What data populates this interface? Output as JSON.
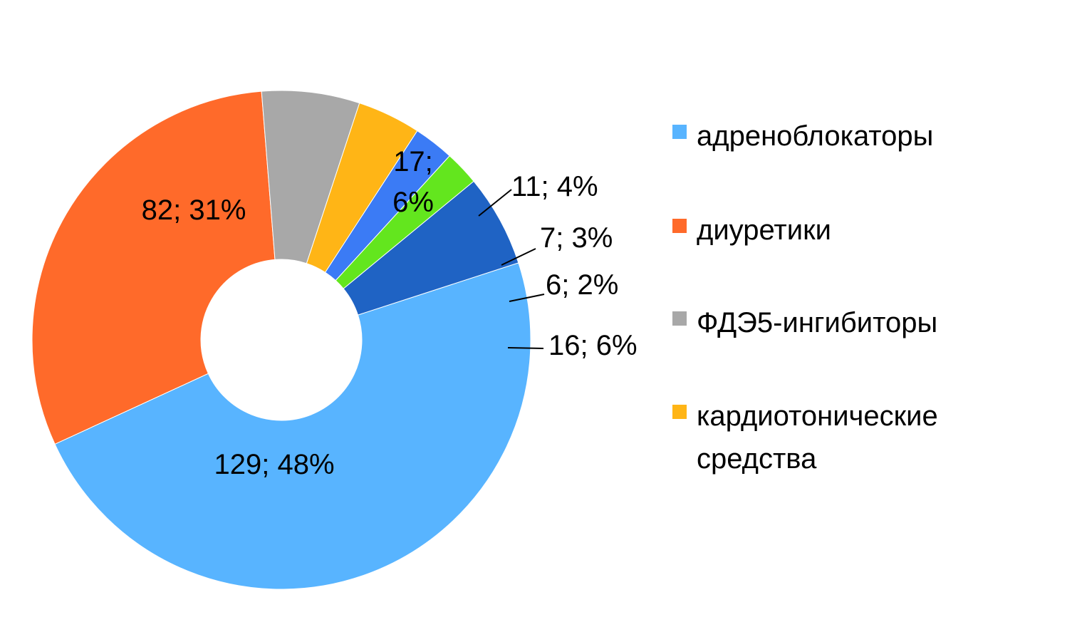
{
  "chart_data": {
    "type": "pie",
    "variant": "donut",
    "title": "",
    "legend_position": "right",
    "slices": [
      {
        "name": "адреноблокаторы",
        "value": 129,
        "percent": 48,
        "label": "129; 48%",
        "color": "#58B4FF"
      },
      {
        "name": "диуретики",
        "value": 82,
        "percent": 31,
        "label": "82; 31%",
        "color": "#FF6A2A"
      },
      {
        "name": "ФДЭ5-ингибиторы",
        "value": 17,
        "percent": 6,
        "label_lines": [
          "17;",
          "6%"
        ],
        "color": "#A8A8A8"
      },
      {
        "name": "кардиотонические средства",
        "value": 11,
        "percent": 4,
        "label": "11; 4%",
        "color": "#FFB516"
      },
      {
        "name": "",
        "value": 7,
        "percent": 3,
        "label": "7; 3%",
        "color": "#3B7BF5"
      },
      {
        "name": "",
        "value": 6,
        "percent": 2,
        "label": "6; 2%",
        "color": "#63E61E"
      },
      {
        "name": "",
        "value": 16,
        "percent": 6,
        "label": "16; 6%",
        "color": "#1F63C4"
      }
    ],
    "legend": [
      {
        "lines": [
          "адреноблокаторы"
        ],
        "color": "#58B4FF"
      },
      {
        "lines": [
          "диуретики"
        ],
        "color": "#FF6A2A"
      },
      {
        "lines": [
          "ФДЭ5-ингибиторы"
        ],
        "color": "#A8A8A8"
      },
      {
        "lines": [
          "кардиотонические",
          "средства"
        ],
        "color": "#FFB516"
      }
    ]
  }
}
